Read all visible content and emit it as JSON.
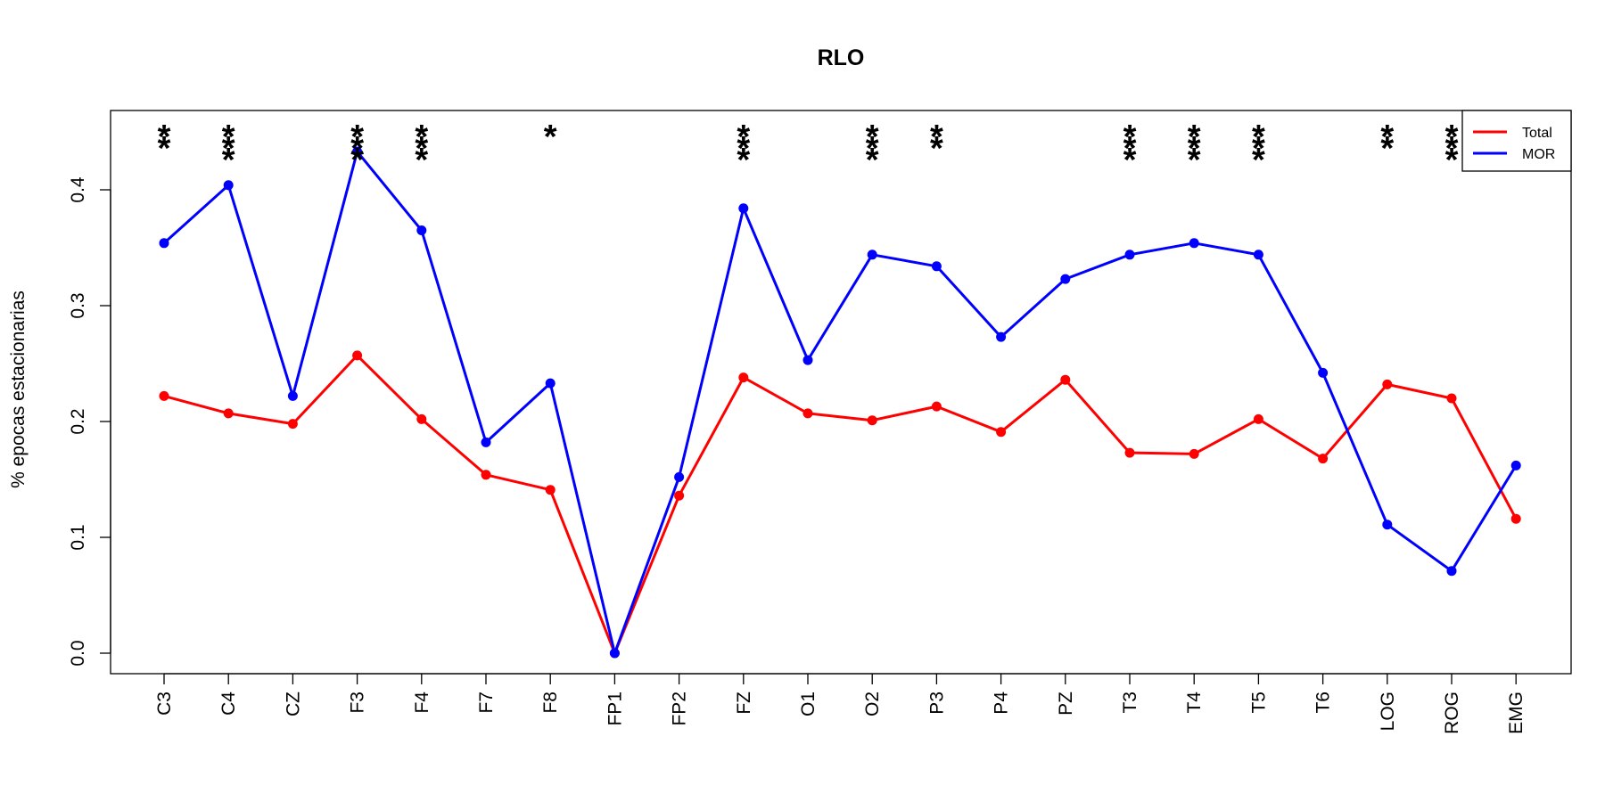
{
  "chart_data": {
    "type": "line",
    "title": "RLO",
    "xlabel": "",
    "ylabel": "% epocas estacionarias",
    "categories": [
      "C3",
      "C4",
      "CZ",
      "F3",
      "F4",
      "F7",
      "F8",
      "FP1",
      "FP2",
      "FZ",
      "O1",
      "O2",
      "P3",
      "P4",
      "PZ",
      "T3",
      "T4",
      "T5",
      "T6",
      "LOG",
      "ROG",
      "EMG"
    ],
    "ylim": [
      0.0,
      0.45
    ],
    "yticks": [
      0.0,
      0.1,
      0.2,
      0.3,
      0.4
    ],
    "ytick_labels": [
      "0.0",
      "0.1",
      "0.2",
      "0.3",
      "0.4"
    ],
    "grid": false,
    "legend_position": "top-right",
    "series": [
      {
        "name": "Total",
        "color": "#ff0000",
        "values": [
          0.222,
          0.207,
          0.198,
          0.257,
          0.202,
          0.154,
          0.141,
          0.0,
          0.136,
          0.238,
          0.207,
          0.201,
          0.213,
          0.191,
          0.236,
          0.173,
          0.172,
          0.202,
          0.168,
          0.232,
          0.22,
          0.116
        ]
      },
      {
        "name": "MOR",
        "color": "#0000ff",
        "values": [
          0.354,
          0.404,
          0.222,
          0.433,
          0.365,
          0.182,
          0.233,
          0.0,
          0.152,
          0.384,
          0.253,
          0.344,
          0.334,
          0.273,
          0.323,
          0.344,
          0.354,
          0.344,
          0.242,
          0.111,
          0.071,
          0.162
        ]
      }
    ],
    "significance": [
      "**",
      "***",
      "",
      "***",
      "***",
      "",
      "*",
      "",
      "",
      "***",
      "",
      "***",
      "**",
      "",
      "",
      "***",
      "***",
      "***",
      "",
      "**",
      "***",
      ""
    ]
  }
}
